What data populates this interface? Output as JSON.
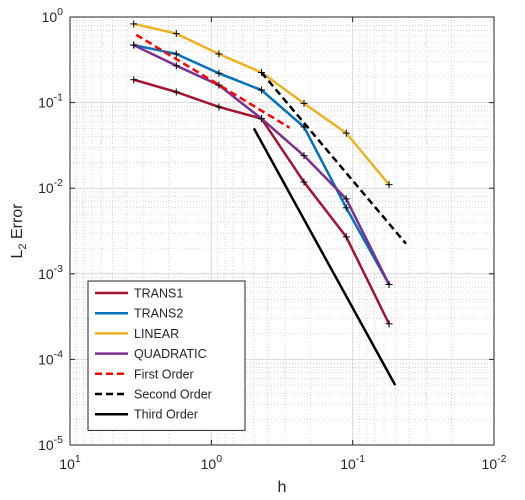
{
  "chart_data": {
    "type": "line",
    "title": "",
    "xlabel": "h",
    "ylabel_main": "L",
    "ylabel_sub": "2",
    "ylabel_rest": " Error",
    "x_scale": "log",
    "y_scale": "log",
    "x_reversed": true,
    "xlim": [
      10,
      0.01
    ],
    "ylim": [
      1e-05,
      1
    ],
    "grid": "major and minor",
    "x_ticks": [
      {
        "value": 10,
        "base": "10",
        "exp": "1"
      },
      {
        "value": 1,
        "base": "10",
        "exp": "0"
      },
      {
        "value": 0.1,
        "base": "10",
        "exp": "-1"
      },
      {
        "value": 0.01,
        "base": "10",
        "exp": "-2"
      }
    ],
    "y_ticks": [
      {
        "value": 1,
        "base": "10",
        "exp": "0"
      },
      {
        "value": 0.1,
        "base": "10",
        "exp": "-1"
      },
      {
        "value": 0.01,
        "base": "10",
        "exp": "-2"
      },
      {
        "value": 0.001,
        "base": "10",
        "exp": "-3"
      },
      {
        "value": 0.0001,
        "base": "10",
        "exp": "-4"
      },
      {
        "value": 1e-05,
        "base": "10",
        "exp": "-5"
      }
    ],
    "legend_position": "bottom-left",
    "series": [
      {
        "name": "TRANS1",
        "color": "#A2142F",
        "dash": "solid",
        "markers": true,
        "x": [
          3.54,
          1.77,
          0.884,
          0.442,
          0.221,
          0.111,
          0.0553
        ],
        "y": [
          0.185,
          0.133,
          0.089,
          0.065,
          0.0118,
          0.0027,
          0.00026
        ]
      },
      {
        "name": "TRANS2",
        "color": "#0072BD",
        "dash": "solid",
        "markers": true,
        "x": [
          3.54,
          1.77,
          0.884,
          0.442,
          0.221,
          0.111,
          0.0553
        ],
        "y": [
          0.47,
          0.37,
          0.22,
          0.14,
          0.052,
          0.0059,
          0.00075
        ]
      },
      {
        "name": "LINEAR",
        "color": "#EDB120",
        "dash": "solid",
        "markers": true,
        "x": [
          3.54,
          1.77,
          0.884,
          0.442,
          0.221,
          0.111,
          0.0553
        ],
        "y": [
          0.83,
          0.64,
          0.37,
          0.225,
          0.098,
          0.044,
          0.011
        ]
      },
      {
        "name": "QUADRATIC",
        "color": "#7E2F8E",
        "dash": "solid",
        "markers": true,
        "x": [
          3.54,
          1.77,
          0.884,
          0.442,
          0.221,
          0.111,
          0.0553
        ],
        "y": [
          0.47,
          0.27,
          0.16,
          0.065,
          0.024,
          0.0075,
          0.00075
        ]
      },
      {
        "name": "First Order",
        "color": "#FF0000",
        "dash": "dashed",
        "markers": false,
        "x": [
          3.4,
          0.28
        ],
        "y": [
          0.62,
          0.051
        ]
      },
      {
        "name": "Second Order",
        "color": "#000000",
        "dash": "dashed",
        "markers": false,
        "x": [
          0.442,
          0.042
        ],
        "y": [
          0.225,
          0.00225
        ]
      },
      {
        "name": "Third Order",
        "color": "#000000",
        "dash": "solid",
        "markers": false,
        "x": [
          0.5,
          0.05
        ],
        "y": [
          0.05,
          5e-05
        ]
      }
    ]
  }
}
